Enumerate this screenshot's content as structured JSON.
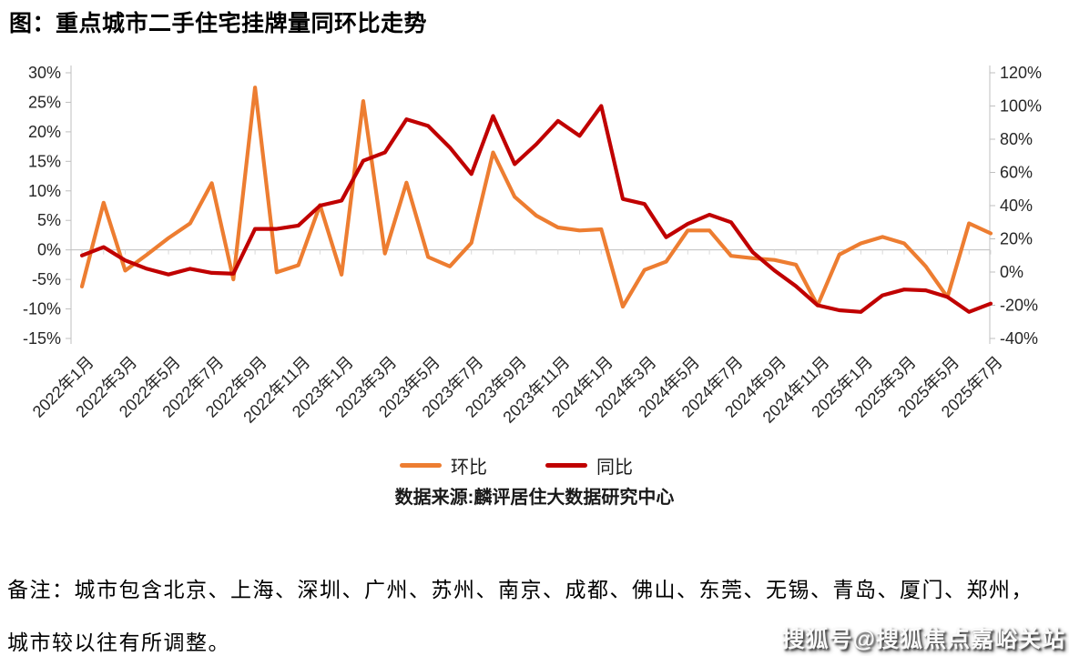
{
  "page": {
    "title": "图：重点城市二手住宅挂牌量同环比走势"
  },
  "legend": [
    {
      "label": "环比"
    },
    {
      "label": "同比"
    }
  ],
  "source": "数据来源:麟评居住大数据研究中心",
  "note": {
    "line1": "备注：城市包含北京、上海、深圳、广州、苏州、南京、成都、佛山、东莞、无锡、青岛、厦门、郑州，",
    "line2": "城市较以往有所调整。"
  },
  "watermark": "搜狐号@搜狐焦点嘉峪关站",
  "chart_data": {
    "type": "line",
    "title": "图：重点城市二手住宅挂牌量同环比走势",
    "x": [
      "2022年1月",
      "2022年2月",
      "2022年3月",
      "2022年4月",
      "2022年5月",
      "2022年6月",
      "2022年7月",
      "2022年8月",
      "2022年9月",
      "2022年10月",
      "2022年11月",
      "2022年12月",
      "2023年1月",
      "2023年2月",
      "2023年3月",
      "2023年4月",
      "2023年5月",
      "2023年6月",
      "2023年7月",
      "2023年8月",
      "2023年9月",
      "2023年10月",
      "2023年11月",
      "2023年12月",
      "2024年1月",
      "2024年2月",
      "2024年3月",
      "2024年4月",
      "2024年5月",
      "2024年6月",
      "2024年7月",
      "2024年8月",
      "2024年9月",
      "2024年10月",
      "2024年11月",
      "2024年12月",
      "2025年1月",
      "2025年2月",
      "2025年3月",
      "2025年4月",
      "2025年5月",
      "2025年6月",
      "2025年7月"
    ],
    "x_tick_every": 2,
    "series": [
      {
        "name": "环比",
        "axis": "left",
        "color": "#ED7D31",
        "values": [
          -6.2,
          8.0,
          -3.5,
          -0.8,
          2.0,
          4.5,
          11.3,
          -5.0,
          27.5,
          -3.8,
          -2.6,
          7.6,
          -4.2,
          25.2,
          -0.6,
          11.4,
          -1.2,
          -2.8,
          1.2,
          16.5,
          9.0,
          5.8,
          3.8,
          3.3,
          3.5,
          -9.6,
          -3.4,
          -2.0,
          3.3,
          3.3,
          -1.0,
          -1.4,
          -1.7,
          -2.5,
          -9.4,
          -0.8,
          1.1,
          2.2,
          1.1,
          -2.8,
          -8.0,
          4.5,
          2.8
        ]
      },
      {
        "name": "同比",
        "axis": "right",
        "color": "#C00000",
        "values": [
          10,
          15,
          7,
          2,
          -1.5,
          2,
          -0.5,
          -1,
          26,
          26,
          28,
          40,
          43,
          67,
          72,
          92,
          88,
          75,
          59,
          94,
          65,
          77,
          91,
          82,
          100,
          44,
          41,
          21,
          29,
          34.5,
          30,
          12,
          1,
          -8.5,
          -20,
          -23,
          -24,
          -14,
          -10.5,
          -11,
          -15,
          -24,
          -19
        ]
      }
    ],
    "left_axis": {
      "min": -15,
      "max": 30,
      "step": 5,
      "unit": "%"
    },
    "right_axis": {
      "min": -40,
      "max": 120,
      "step": 20,
      "unit": "%"
    },
    "grid": false,
    "legend_position": "bottom",
    "source": "数据来源:麟评居住大数据研究中心"
  }
}
